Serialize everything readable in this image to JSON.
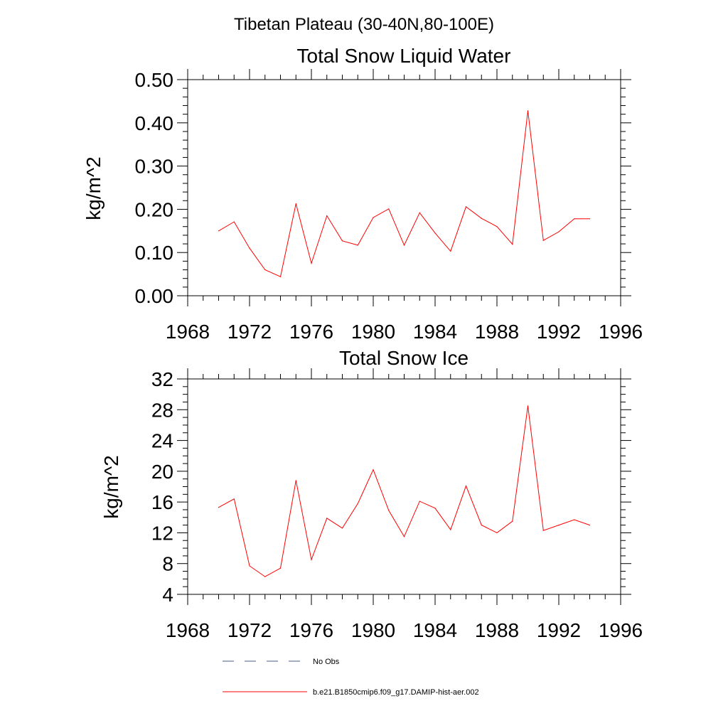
{
  "figure_title": "Tibetan Plateau (30-40N,80-100E)",
  "colors": {
    "model": "#ff0000",
    "obs": "#4a5a8c",
    "axis": "#000000"
  },
  "chart_data": [
    {
      "type": "line",
      "title": "Total Snow Liquid Water",
      "xlabel": "",
      "ylabel": "kg/m^2",
      "xlim": [
        1968,
        1996
      ],
      "ylim": [
        0.0,
        0.5
      ],
      "xticks": [
        1968,
        1972,
        1976,
        1980,
        1984,
        1988,
        1992,
        1996
      ],
      "xtick_labels": [
        "1968",
        "1972",
        "1976",
        "1980",
        "1984",
        "1988",
        "1992",
        "1996"
      ],
      "yticks": [
        0.0,
        0.1,
        0.2,
        0.3,
        0.4,
        0.5
      ],
      "ytick_labels": [
        "0.00",
        "0.10",
        "0.20",
        "0.30",
        "0.40",
        "0.50"
      ],
      "grid": false,
      "series": [
        {
          "name": "b.e21.B1850cmip6.f09_g17.DAMIP-hist-aer.002",
          "x": [
            1970,
            1971,
            1972,
            1973,
            1974,
            1975,
            1976,
            1977,
            1978,
            1979,
            1980,
            1981,
            1982,
            1983,
            1984,
            1985,
            1986,
            1987,
            1988,
            1989,
            1990,
            1991,
            1992,
            1993,
            1994
          ],
          "values": [
            0.15,
            0.171,
            0.11,
            0.06,
            0.044,
            0.213,
            0.075,
            0.185,
            0.127,
            0.117,
            0.181,
            0.201,
            0.117,
            0.192,
            0.145,
            0.103,
            0.206,
            0.179,
            0.16,
            0.119,
            0.428,
            0.128,
            0.148,
            0.178,
            0.178
          ]
        }
      ]
    },
    {
      "type": "line",
      "title": "Total Snow Ice",
      "xlabel": "",
      "ylabel": "kg/m^2",
      "xlim": [
        1968,
        1996
      ],
      "ylim": [
        4,
        32
      ],
      "xticks": [
        1968,
        1972,
        1976,
        1980,
        1984,
        1988,
        1992,
        1996
      ],
      "xtick_labels": [
        "1968",
        "1972",
        "1976",
        "1980",
        "1984",
        "1988",
        "1992",
        "1996"
      ],
      "yticks": [
        4,
        8,
        12,
        16,
        20,
        24,
        28,
        32
      ],
      "ytick_labels": [
        "4",
        "8",
        "12",
        "16",
        "20",
        "24",
        "28",
        "32"
      ],
      "grid": false,
      "series": [
        {
          "name": "b.e21.B1850cmip6.f09_g17.DAMIP-hist-aer.002",
          "x": [
            1970,
            1971,
            1972,
            1973,
            1974,
            1975,
            1976,
            1977,
            1978,
            1979,
            1980,
            1981,
            1982,
            1983,
            1984,
            1985,
            1986,
            1987,
            1988,
            1989,
            1990,
            1991,
            1992,
            1993,
            1994
          ],
          "values": [
            15.3,
            16.4,
            7.7,
            6.3,
            7.4,
            18.8,
            8.5,
            13.9,
            12.6,
            15.8,
            20.2,
            14.9,
            11.5,
            16.1,
            15.2,
            12.4,
            18.1,
            13.0,
            12.0,
            13.5,
            28.5,
            12.3,
            13.0,
            13.7,
            13.0
          ]
        }
      ]
    }
  ],
  "legend": {
    "placement": "bottom",
    "items": [
      {
        "label": "No Obs",
        "style": "dashed"
      },
      {
        "label": "b.e21.B1850cmip6.f09_g17.DAMIP-hist-aer.002",
        "style": "solid"
      }
    ]
  }
}
